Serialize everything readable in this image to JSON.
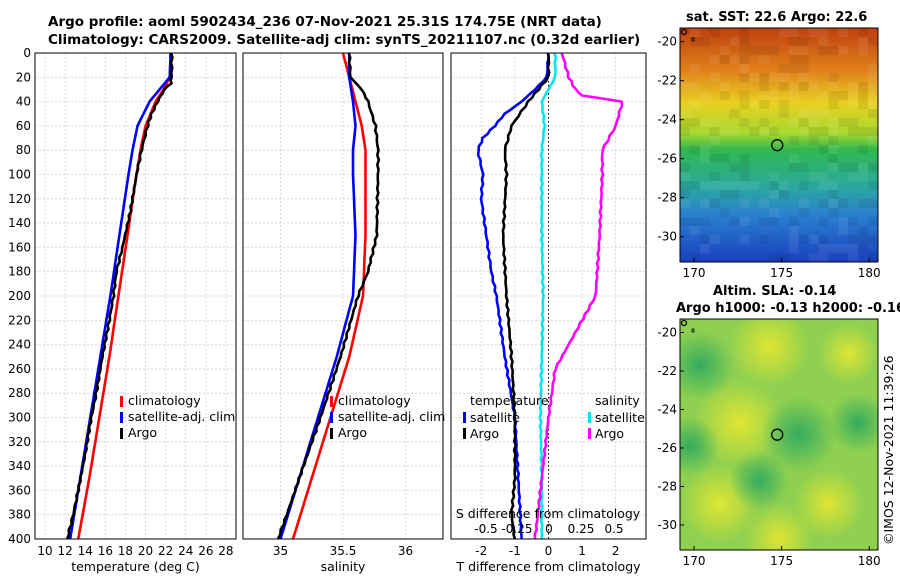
{
  "title_line1": "Argo profile: aoml 5902434_236 07-Nov-2021 25.31S 174.75E (NRT data)",
  "title_line2": "Climatology: CARS2009. Satellite-adj clim: synTS_20211107.nc (0.32d earlier)",
  "copyright": "©IMOS 12-Nov-2021 11:39:26",
  "colors": {
    "climatology": "#ff0000",
    "satellite": "#0000ff",
    "argo": "#000000",
    "cyan": "#00e5ee",
    "magenta": "#ff00ff",
    "grid": "#c8c8c8"
  },
  "chart_data": [
    {
      "type": "line",
      "name": "temperature",
      "xlabel": "temperature (deg C)",
      "ylabel": "",
      "xlim": [
        9,
        29
      ],
      "ylim": [
        400,
        0
      ],
      "xticks": [
        "10",
        "12",
        "14",
        "16",
        "18",
        "20",
        "22",
        "24",
        "26",
        "28"
      ],
      "yticks": [
        "0",
        "20",
        "40",
        "60",
        "80",
        "100",
        "120",
        "140",
        "160",
        "180",
        "200",
        "220",
        "240",
        "260",
        "280",
        "300",
        "320",
        "340",
        "360",
        "380",
        "400"
      ],
      "legend": [
        "climatology",
        "satellite-adj. clim",
        "Argo"
      ],
      "series": [
        {
          "name": "climatology",
          "color": "#ff0000",
          "depth": [
            0,
            20,
            30,
            40,
            60,
            80,
            100,
            150,
            200,
            250,
            300,
            350,
            400
          ],
          "values": [
            22.5,
            22.4,
            21.8,
            21.0,
            20.0,
            19.5,
            19.1,
            18.2,
            17.3,
            16.4,
            15.4,
            14.4,
            13.3
          ]
        },
        {
          "name": "satellite-adj. clim",
          "color": "#0000ff",
          "depth": [
            0,
            20,
            30,
            40,
            60,
            80,
            100,
            150,
            200,
            250,
            300,
            350,
            400
          ],
          "values": [
            22.5,
            22.4,
            21.4,
            20.4,
            19.2,
            18.7,
            18.3,
            17.4,
            16.5,
            15.5,
            14.5,
            13.5,
            12.5
          ]
        },
        {
          "name": "Argo",
          "color": "#000000",
          "depth": [
            0,
            20,
            25,
            30,
            40,
            50,
            60,
            80,
            100,
            130,
            160,
            180,
            200,
            220,
            250,
            280,
            300,
            330,
            360,
            380,
            400
          ],
          "values": [
            22.6,
            22.6,
            22.5,
            21.9,
            21.2,
            20.6,
            20.2,
            19.6,
            19.1,
            18.5,
            17.7,
            17.1,
            16.8,
            16.4,
            15.7,
            15.1,
            14.6,
            14.0,
            13.3,
            12.8,
            12.2
          ]
        }
      ]
    },
    {
      "type": "line",
      "name": "salinity",
      "xlabel": "salinity",
      "ylabel": "",
      "xlim": [
        34.7,
        36.3
      ],
      "ylim": [
        400,
        0
      ],
      "xticks": [
        "35",
        "35.5",
        "36"
      ],
      "legend": [
        "climatology",
        "satellite-adj. clim",
        "Argo"
      ],
      "series": [
        {
          "name": "climatology",
          "color": "#ff0000",
          "depth": [
            0,
            20,
            40,
            60,
            80,
            100,
            150,
            200,
            250,
            300,
            350,
            400
          ],
          "values": [
            35.5,
            35.55,
            35.6,
            35.65,
            35.68,
            35.68,
            35.68,
            35.66,
            35.55,
            35.4,
            35.25,
            35.1
          ]
        },
        {
          "name": "satellite-adj. clim",
          "color": "#0000ff",
          "depth": [
            0,
            20,
            40,
            60,
            80,
            100,
            150,
            200,
            250,
            300,
            350,
            400
          ],
          "values": [
            35.55,
            35.55,
            35.58,
            35.6,
            35.58,
            35.58,
            35.6,
            35.58,
            35.45,
            35.3,
            35.15,
            35.0
          ]
        },
        {
          "name": "Argo",
          "color": "#000000",
          "depth": [
            0,
            20,
            30,
            40,
            60,
            80,
            100,
            150,
            180,
            200,
            250,
            300,
            350,
            380,
            400
          ],
          "values": [
            35.55,
            35.56,
            35.65,
            35.7,
            35.76,
            35.78,
            35.78,
            35.77,
            35.7,
            35.62,
            35.48,
            35.32,
            35.15,
            35.05,
            34.98
          ]
        }
      ]
    },
    {
      "type": "line",
      "name": "differences",
      "xlabel": "T difference from climatology",
      "xlabel_top": "S difference from climatology",
      "xlim": [
        -2.9,
        2.9
      ],
      "ylim": [
        400,
        0
      ],
      "xticks": [
        "-2",
        "-1",
        "0",
        "1",
        "2"
      ],
      "xticks_top": [
        "-0.5",
        "-0.25",
        "0",
        "0.25",
        "0.5"
      ],
      "legend_temperature": {
        "title": "temperature",
        "items": [
          "satellite",
          "Argo"
        ]
      },
      "legend_salinity": {
        "title": "salinity",
        "items": [
          "satellite",
          "Argo"
        ]
      },
      "series": [
        {
          "name": "T satellite",
          "color": "#0000ff",
          "depth": [
            0,
            20,
            30,
            40,
            50,
            60,
            70,
            80,
            100,
            120,
            140,
            160,
            180,
            200,
            250,
            300,
            350,
            400
          ],
          "values": [
            0,
            -0.05,
            -0.4,
            -0.8,
            -1.3,
            -1.6,
            -1.95,
            -2.1,
            -1.95,
            -2.0,
            -1.9,
            -1.8,
            -1.7,
            -1.55,
            -1.3,
            -1.0,
            -0.9,
            -0.8
          ]
        },
        {
          "name": "T Argo",
          "color": "#000000",
          "depth": [
            0,
            20,
            30,
            40,
            60,
            80,
            100,
            150,
            200,
            250,
            300,
            350,
            380,
            400
          ],
          "values": [
            0,
            0,
            -0.3,
            -0.6,
            -1.1,
            -1.3,
            -1.25,
            -1.35,
            -1.25,
            -1.1,
            -1.0,
            -1.0,
            -1.1,
            -1.0
          ]
        },
        {
          "name": "S satellite",
          "color": "#00e5ee",
          "depth": [
            0,
            20,
            30,
            40,
            60,
            80,
            100,
            150,
            200,
            250,
            300,
            350,
            400
          ],
          "values": [
            0.05,
            0.05,
            0,
            -0.05,
            -0.03,
            -0.05,
            -0.05,
            -0.05,
            -0.04,
            -0.05,
            -0.06,
            -0.05,
            -0.05
          ]
        },
        {
          "name": "S Argo",
          "color": "#ff00ff",
          "depth": [
            0,
            20,
            30,
            35,
            40,
            60,
            80,
            100,
            150,
            200,
            230,
            260,
            300,
            350,
            400
          ],
          "values": [
            0.1,
            0.15,
            0.2,
            0.25,
            0.55,
            0.5,
            0.4,
            0.4,
            0.38,
            0.35,
            0.2,
            0.05,
            0,
            -0.05,
            -0.1
          ]
        }
      ]
    }
  ],
  "map_sst": {
    "title": "sat. SST: 22.6 Argo: 22.6",
    "xticks": [
      "170",
      "175",
      "180"
    ],
    "yticks": [
      "-20",
      "-22",
      "-24",
      "-26",
      "-28",
      "-30"
    ],
    "marker": {
      "lon": 174.75,
      "lat": -25.31
    }
  },
  "map_sla": {
    "title1": "Altim. SLA: -0.14",
    "title2": "Argo h1000: -0.13 h2000: -0.16",
    "xticks": [
      "170",
      "175",
      "180"
    ],
    "yticks": [
      "-20",
      "-22",
      "-24",
      "-26",
      "-28",
      "-30"
    ],
    "marker": {
      "lon": 174.75,
      "lat": -25.31
    }
  }
}
